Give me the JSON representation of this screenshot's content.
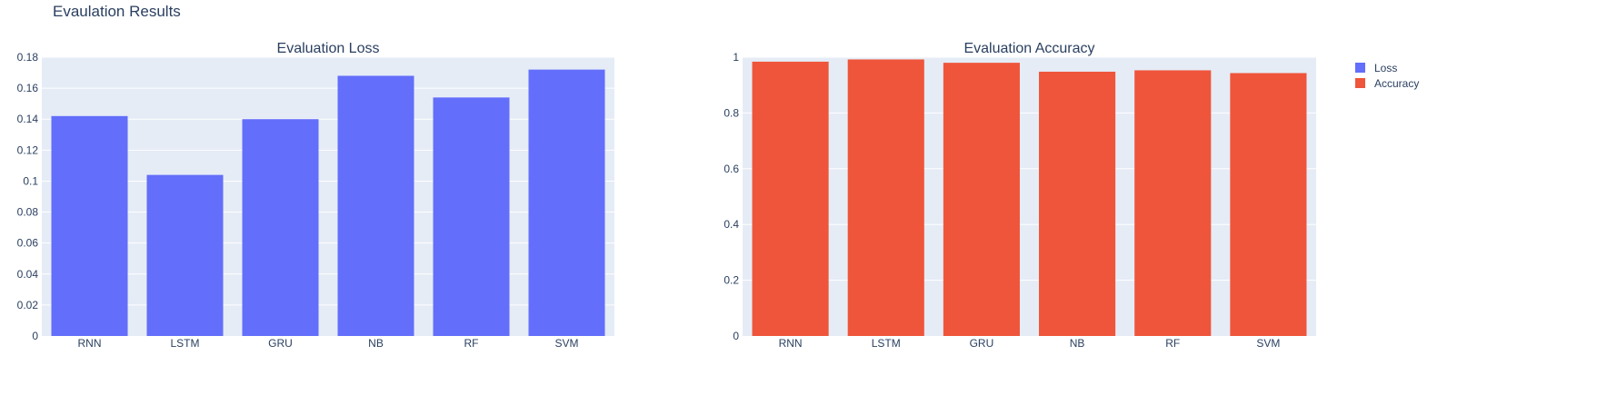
{
  "title": "Evaulation Results",
  "colors": {
    "loss": "#636efa",
    "accuracy": "#ef553b",
    "plot_bg": "#e5ecf6",
    "text": "#2a3f5f"
  },
  "legend": [
    "Loss",
    "Accuracy"
  ],
  "chart_data": [
    {
      "type": "bar",
      "title": "Evaluation Loss",
      "series_name": "Loss",
      "categories": [
        "RNN",
        "LSTM",
        "GRU",
        "NB",
        "RF",
        "SVM"
      ],
      "values": [
        0.142,
        0.104,
        0.14,
        0.168,
        0.154,
        0.172
      ],
      "ylim": [
        0,
        0.18
      ],
      "yticks": [
        0,
        0.02,
        0.04,
        0.06,
        0.08,
        0.1,
        0.12,
        0.14,
        0.16,
        0.18
      ],
      "ytick_labels": [
        "0",
        "0.02",
        "0.04",
        "0.06",
        "0.08",
        "0.1",
        "0.12",
        "0.14",
        "0.16",
        "0.18"
      ],
      "grid": true
    },
    {
      "type": "bar",
      "title": "Evaluation Accuracy",
      "series_name": "Accuracy",
      "categories": [
        "RNN",
        "LSTM",
        "GRU",
        "NB",
        "RF",
        "SVM"
      ],
      "values": [
        0.984,
        0.992,
        0.98,
        0.948,
        0.953,
        0.943
      ],
      "ylim": [
        0,
        1.0
      ],
      "yticks": [
        0,
        0.2,
        0.4,
        0.6,
        0.8,
        1
      ],
      "ytick_labels": [
        "0",
        "0.2",
        "0.4",
        "0.6",
        "0.8",
        "1"
      ],
      "grid": true
    }
  ]
}
